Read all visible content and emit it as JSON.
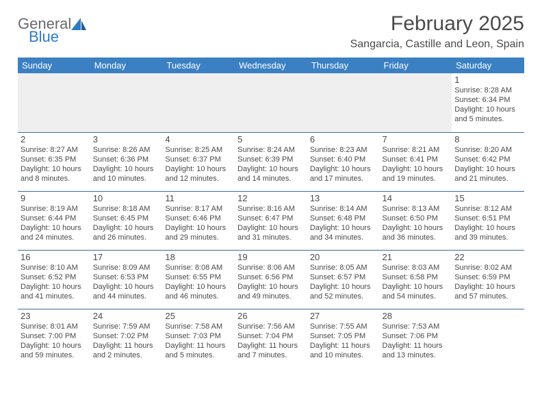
{
  "logo": {
    "general": "General",
    "blue": "Blue"
  },
  "title": "February 2025",
  "location": "Sangarcia, Castille and Leon, Spain",
  "colors": {
    "header_bg": "#3a80c3",
    "header_text": "#ffffff",
    "cell_border": "#3a6a9a",
    "text": "#4a4a4a",
    "logo_blue": "#2f7bc1",
    "empty_bg": "#efefef"
  },
  "typography": {
    "title_fontsize": 30,
    "location_fontsize": 16,
    "dayheader_fontsize": 13,
    "cell_fontsize": 11
  },
  "day_headers": [
    "Sunday",
    "Monday",
    "Tuesday",
    "Wednesday",
    "Thursday",
    "Friday",
    "Saturday"
  ],
  "weeks": [
    [
      null,
      null,
      null,
      null,
      null,
      null,
      {
        "n": "1",
        "sunrise": "Sunrise: 8:28 AM",
        "sunset": "Sunset: 6:34 PM",
        "day": "Daylight: 10 hours and 5 minutes."
      }
    ],
    [
      {
        "n": "2",
        "sunrise": "Sunrise: 8:27 AM",
        "sunset": "Sunset: 6:35 PM",
        "day": "Daylight: 10 hours and 8 minutes."
      },
      {
        "n": "3",
        "sunrise": "Sunrise: 8:26 AM",
        "sunset": "Sunset: 6:36 PM",
        "day": "Daylight: 10 hours and 10 minutes."
      },
      {
        "n": "4",
        "sunrise": "Sunrise: 8:25 AM",
        "sunset": "Sunset: 6:37 PM",
        "day": "Daylight: 10 hours and 12 minutes."
      },
      {
        "n": "5",
        "sunrise": "Sunrise: 8:24 AM",
        "sunset": "Sunset: 6:39 PM",
        "day": "Daylight: 10 hours and 14 minutes."
      },
      {
        "n": "6",
        "sunrise": "Sunrise: 8:23 AM",
        "sunset": "Sunset: 6:40 PM",
        "day": "Daylight: 10 hours and 17 minutes."
      },
      {
        "n": "7",
        "sunrise": "Sunrise: 8:21 AM",
        "sunset": "Sunset: 6:41 PM",
        "day": "Daylight: 10 hours and 19 minutes."
      },
      {
        "n": "8",
        "sunrise": "Sunrise: 8:20 AM",
        "sunset": "Sunset: 6:42 PM",
        "day": "Daylight: 10 hours and 21 minutes."
      }
    ],
    [
      {
        "n": "9",
        "sunrise": "Sunrise: 8:19 AM",
        "sunset": "Sunset: 6:44 PM",
        "day": "Daylight: 10 hours and 24 minutes."
      },
      {
        "n": "10",
        "sunrise": "Sunrise: 8:18 AM",
        "sunset": "Sunset: 6:45 PM",
        "day": "Daylight: 10 hours and 26 minutes."
      },
      {
        "n": "11",
        "sunrise": "Sunrise: 8:17 AM",
        "sunset": "Sunset: 6:46 PM",
        "day": "Daylight: 10 hours and 29 minutes."
      },
      {
        "n": "12",
        "sunrise": "Sunrise: 8:16 AM",
        "sunset": "Sunset: 6:47 PM",
        "day": "Daylight: 10 hours and 31 minutes."
      },
      {
        "n": "13",
        "sunrise": "Sunrise: 8:14 AM",
        "sunset": "Sunset: 6:48 PM",
        "day": "Daylight: 10 hours and 34 minutes."
      },
      {
        "n": "14",
        "sunrise": "Sunrise: 8:13 AM",
        "sunset": "Sunset: 6:50 PM",
        "day": "Daylight: 10 hours and 36 minutes."
      },
      {
        "n": "15",
        "sunrise": "Sunrise: 8:12 AM",
        "sunset": "Sunset: 6:51 PM",
        "day": "Daylight: 10 hours and 39 minutes."
      }
    ],
    [
      {
        "n": "16",
        "sunrise": "Sunrise: 8:10 AM",
        "sunset": "Sunset: 6:52 PM",
        "day": "Daylight: 10 hours and 41 minutes."
      },
      {
        "n": "17",
        "sunrise": "Sunrise: 8:09 AM",
        "sunset": "Sunset: 6:53 PM",
        "day": "Daylight: 10 hours and 44 minutes."
      },
      {
        "n": "18",
        "sunrise": "Sunrise: 8:08 AM",
        "sunset": "Sunset: 6:55 PM",
        "day": "Daylight: 10 hours and 46 minutes."
      },
      {
        "n": "19",
        "sunrise": "Sunrise: 8:06 AM",
        "sunset": "Sunset: 6:56 PM",
        "day": "Daylight: 10 hours and 49 minutes."
      },
      {
        "n": "20",
        "sunrise": "Sunrise: 8:05 AM",
        "sunset": "Sunset: 6:57 PM",
        "day": "Daylight: 10 hours and 52 minutes."
      },
      {
        "n": "21",
        "sunrise": "Sunrise: 8:03 AM",
        "sunset": "Sunset: 6:58 PM",
        "day": "Daylight: 10 hours and 54 minutes."
      },
      {
        "n": "22",
        "sunrise": "Sunrise: 8:02 AM",
        "sunset": "Sunset: 6:59 PM",
        "day": "Daylight: 10 hours and 57 minutes."
      }
    ],
    [
      {
        "n": "23",
        "sunrise": "Sunrise: 8:01 AM",
        "sunset": "Sunset: 7:00 PM",
        "day": "Daylight: 10 hours and 59 minutes."
      },
      {
        "n": "24",
        "sunrise": "Sunrise: 7:59 AM",
        "sunset": "Sunset: 7:02 PM",
        "day": "Daylight: 11 hours and 2 minutes."
      },
      {
        "n": "25",
        "sunrise": "Sunrise: 7:58 AM",
        "sunset": "Sunset: 7:03 PM",
        "day": "Daylight: 11 hours and 5 minutes."
      },
      {
        "n": "26",
        "sunrise": "Sunrise: 7:56 AM",
        "sunset": "Sunset: 7:04 PM",
        "day": "Daylight: 11 hours and 7 minutes."
      },
      {
        "n": "27",
        "sunrise": "Sunrise: 7:55 AM",
        "sunset": "Sunset: 7:05 PM",
        "day": "Daylight: 11 hours and 10 minutes."
      },
      {
        "n": "28",
        "sunrise": "Sunrise: 7:53 AM",
        "sunset": "Sunset: 7:06 PM",
        "day": "Daylight: 11 hours and 13 minutes."
      },
      null
    ]
  ]
}
